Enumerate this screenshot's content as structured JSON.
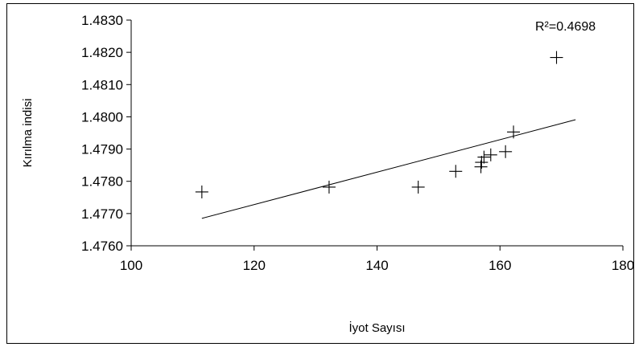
{
  "chart_data": {
    "type": "scatter",
    "title": "",
    "xlabel": "İyot Sayısı",
    "ylabel": "Kırılma indisi",
    "xlim": [
      100,
      180
    ],
    "ylim": [
      1.476,
      1.483
    ],
    "x_ticks": [
      "100",
      "120",
      "140",
      "160",
      "180"
    ],
    "y_ticks": [
      "1.4760",
      "1.4770",
      "1.4780",
      "1.4790",
      "1.4800",
      "1.4810",
      "1.4820",
      "1.4830"
    ],
    "grid": false,
    "legend": false,
    "marker": "plus",
    "points": [
      {
        "x": 111.5,
        "y": 1.47767
      },
      {
        "x": 132.2,
        "y": 1.47782
      },
      {
        "x": 146.7,
        "y": 1.47782
      },
      {
        "x": 152.8,
        "y": 1.47831
      },
      {
        "x": 156.9,
        "y": 1.47845
      },
      {
        "x": 157.0,
        "y": 1.47859
      },
      {
        "x": 157.4,
        "y": 1.47875
      },
      {
        "x": 158.5,
        "y": 1.47882
      },
      {
        "x": 160.9,
        "y": 1.47892
      },
      {
        "x": 162.2,
        "y": 1.47953
      },
      {
        "x": 169.2,
        "y": 1.48184
      }
    ],
    "trendline": {
      "type": "linear",
      "x": [
        111.5,
        172.3
      ],
      "y": [
        1.47685,
        1.47991
      ]
    },
    "annotation": "R²=0.4698"
  }
}
